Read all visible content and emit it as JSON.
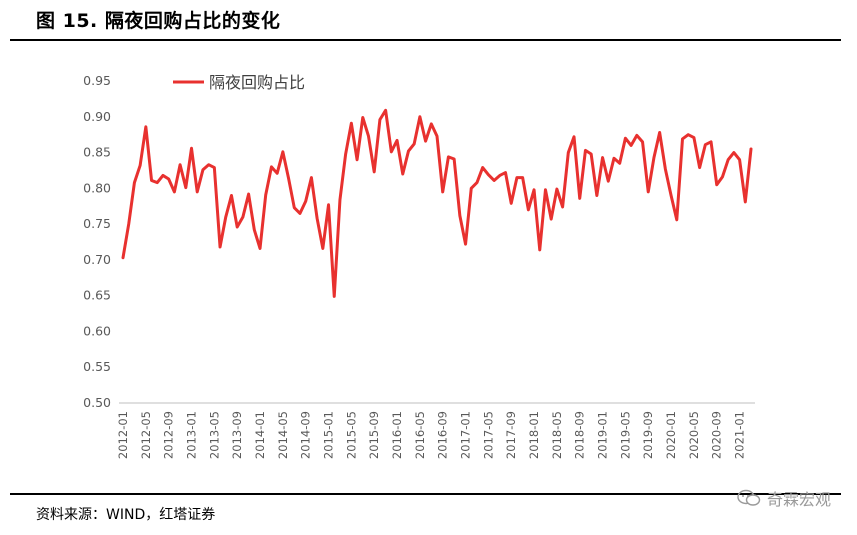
{
  "figure": {
    "title": "图 15. 隔夜回购占比的变化",
    "source": "资料来源：WIND，红塔证券",
    "watermark": "奇霖宏观"
  },
  "chart_data": {
    "type": "line",
    "title": "",
    "xlabel": "",
    "ylabel": "",
    "ylim": [
      0.5,
      0.95
    ],
    "yticks": [
      "0.50",
      "0.55",
      "0.60",
      "0.65",
      "0.70",
      "0.75",
      "0.80",
      "0.85",
      "0.90",
      "0.95"
    ],
    "grid": false,
    "legend_position": "top-left",
    "x_tick_labels": [
      "2012-01",
      "2012-05",
      "2012-09",
      "2013-01",
      "2013-05",
      "2013-09",
      "2014-01",
      "2014-05",
      "2014-09",
      "2015-01",
      "2015-05",
      "2015-09",
      "2016-01",
      "2016-05",
      "2016-09",
      "2017-01",
      "2017-05",
      "2017-09",
      "2018-01",
      "2018-05",
      "2018-09",
      "2019-01",
      "2019-05",
      "2019-09",
      "2020-01",
      "2020-05",
      "2020-09",
      "2021-01"
    ],
    "x_start": "2012-01",
    "series": [
      {
        "name": "隔夜回购占比",
        "color": "#e8312f",
        "values": [
          0.703,
          0.75,
          0.808,
          0.832,
          0.886,
          0.811,
          0.808,
          0.818,
          0.813,
          0.795,
          0.833,
          0.801,
          0.856,
          0.795,
          0.826,
          0.833,
          0.829,
          0.718,
          0.76,
          0.79,
          0.746,
          0.76,
          0.792,
          0.742,
          0.716,
          0.791,
          0.83,
          0.821,
          0.851,
          0.814,
          0.773,
          0.765,
          0.782,
          0.815,
          0.758,
          0.716,
          0.777,
          0.649,
          0.784,
          0.848,
          0.891,
          0.84,
          0.899,
          0.873,
          0.823,
          0.896,
          0.909,
          0.851,
          0.867,
          0.82,
          0.852,
          0.862,
          0.9,
          0.866,
          0.89,
          0.873,
          0.795,
          0.844,
          0.841,
          0.762,
          0.722,
          0.8,
          0.808,
          0.829,
          0.819,
          0.811,
          0.818,
          0.822,
          0.779,
          0.815,
          0.815,
          0.77,
          0.798,
          0.714,
          0.798,
          0.757,
          0.799,
          0.774,
          0.85,
          0.872,
          0.786,
          0.853,
          0.848,
          0.79,
          0.843,
          0.81,
          0.842,
          0.835,
          0.87,
          0.86,
          0.874,
          0.865,
          0.795,
          0.843,
          0.878,
          0.827,
          0.79,
          0.756,
          0.869,
          0.875,
          0.871,
          0.829,
          0.861,
          0.865,
          0.805,
          0.816,
          0.84,
          0.85,
          0.84,
          0.781,
          0.855
        ]
      }
    ]
  }
}
